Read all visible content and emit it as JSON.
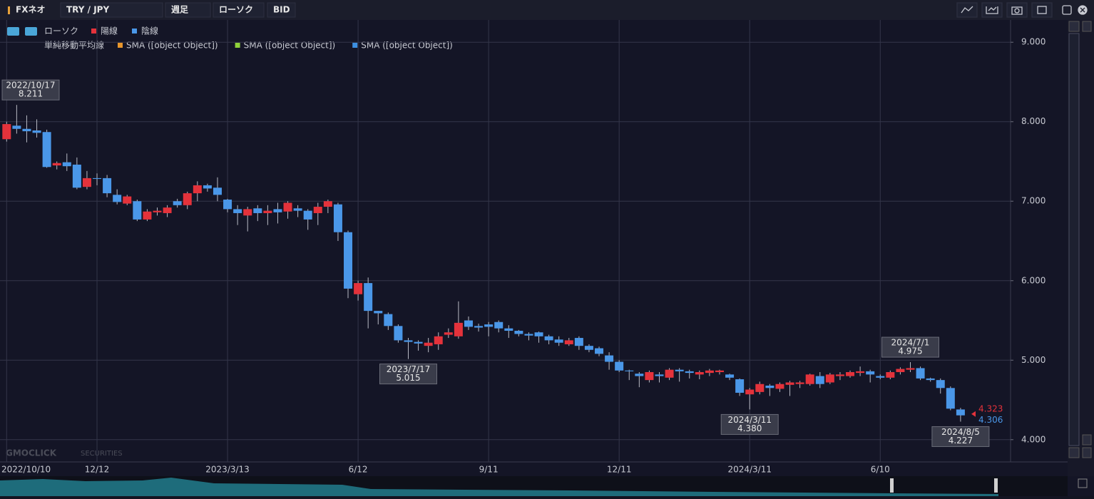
{
  "toolbar": {
    "app": "FXネオ",
    "pair": "TRY / JPY",
    "period": "週足",
    "chart_kind": "ローソク",
    "price_type": "BID"
  },
  "watermark": {
    "brand": "GMOCLICK",
    "sub": "SECURITIES"
  },
  "chart_data": {
    "type": "candlestick",
    "legend": {
      "title": "ローソク",
      "up": "陽線",
      "down": "陰線"
    },
    "sma_legend": {
      "title": "単純移動平均線",
      "series": [
        {
          "name": "SMA ([object Object])",
          "color": "#e8962c"
        },
        {
          "name": "SMA ([object Object])",
          "color": "#8fd13a"
        },
        {
          "name": "SMA ([object Object])",
          "color": "#3d8fe0"
        }
      ]
    },
    "up_color": "#e4323b",
    "down_color": "#4a97e8",
    "categories": [
      "2022/10/10",
      null,
      null,
      null,
      null,
      null,
      null,
      null,
      null,
      "12/12",
      null,
      null,
      null,
      null,
      null,
      null,
      null,
      null,
      null,
      null,
      null,
      null,
      "2023/3/13",
      null,
      null,
      null,
      null,
      null,
      null,
      null,
      null,
      null,
      null,
      null,
      null,
      "6/12",
      null,
      null,
      null,
      null,
      null,
      null,
      null,
      null,
      null,
      null,
      null,
      null,
      "9/11",
      null,
      null,
      null,
      null,
      null,
      null,
      null,
      null,
      null,
      null,
      null,
      null,
      "12/11",
      null,
      null,
      null,
      null,
      null,
      null,
      null,
      null,
      null,
      null,
      null,
      null,
      "2024/3/11",
      null,
      null,
      null,
      null,
      null,
      null,
      null,
      null,
      null,
      null,
      null,
      null,
      "6/10",
      null,
      null,
      null,
      null,
      null,
      null,
      null,
      null
    ],
    "open": [
      7.78,
      7.95,
      7.91,
      7.89,
      7.87,
      7.45,
      7.49,
      7.46,
      7.18,
      7.29,
      7.29,
      7.08,
      6.97,
      7.0,
      6.77,
      6.86,
      6.85,
      7.0,
      6.95,
      7.1,
      7.2,
      7.17,
      7.02,
      6.9,
      6.82,
      6.91,
      6.85,
      6.9,
      6.87,
      6.91,
      6.88,
      6.85,
      6.93,
      6.96,
      6.61,
      5.83,
      5.97,
      5.62,
      5.58,
      5.43,
      5.25,
      5.23,
      5.18,
      5.2,
      5.32,
      5.3,
      5.5,
      5.43,
      5.45,
      5.48,
      5.4,
      5.37,
      5.33,
      5.35,
      5.3,
      5.26,
      5.2,
      5.28,
      5.18,
      5.15,
      5.06,
      4.98,
      4.87,
      4.83,
      4.75,
      4.82,
      4.78,
      4.88,
      4.86,
      4.82,
      4.84,
      4.85,
      4.82,
      4.76,
      4.57,
      4.6,
      4.68,
      4.64,
      4.69,
      4.7,
      4.7,
      4.8,
      4.72,
      4.8,
      4.8,
      4.84,
      4.86,
      4.8,
      4.78,
      4.85,
      4.88,
      4.9,
      4.77,
      4.75,
      4.65,
      4.38
    ],
    "high": [
      8.0,
      8.211,
      8.08,
      8.03,
      7.9,
      7.5,
      7.6,
      7.55,
      7.38,
      7.35,
      7.33,
      7.15,
      7.08,
      7.02,
      6.9,
      6.92,
      6.95,
      7.03,
      7.12,
      7.25,
      7.22,
      7.3,
      7.03,
      6.95,
      6.93,
      6.95,
      6.95,
      6.98,
      7.0,
      6.95,
      6.9,
      6.98,
      7.02,
      6.98,
      6.63,
      6.0,
      6.04,
      5.62,
      5.6,
      5.45,
      5.28,
      5.25,
      5.28,
      5.35,
      5.4,
      5.74,
      5.55,
      5.46,
      5.48,
      5.5,
      5.44,
      5.38,
      5.35,
      5.36,
      5.32,
      5.3,
      5.28,
      5.3,
      5.2,
      5.17,
      5.1,
      5.0,
      4.88,
      4.85,
      4.87,
      4.85,
      4.9,
      4.9,
      4.88,
      4.87,
      4.89,
      4.88,
      4.83,
      4.77,
      4.65,
      4.73,
      4.7,
      4.72,
      4.74,
      4.74,
      4.83,
      4.85,
      4.84,
      4.85,
      4.87,
      4.92,
      4.88,
      4.82,
      4.87,
      4.91,
      4.975,
      4.92,
      4.78,
      4.77,
      4.67,
      4.4
    ],
    "low": [
      7.75,
      7.85,
      7.74,
      7.8,
      7.42,
      7.4,
      7.38,
      7.15,
      7.15,
      7.2,
      7.05,
      6.96,
      6.95,
      6.75,
      6.75,
      6.82,
      6.8,
      6.92,
      6.9,
      7.0,
      7.12,
      7.0,
      6.86,
      6.7,
      6.62,
      6.75,
      6.7,
      6.72,
      6.78,
      6.8,
      6.64,
      6.7,
      6.85,
      6.5,
      5.78,
      5.75,
      5.4,
      5.45,
      5.38,
      5.22,
      5.015,
      5.12,
      5.1,
      5.13,
      5.28,
      5.27,
      5.38,
      5.36,
      5.3,
      5.35,
      5.28,
      5.3,
      5.25,
      5.22,
      5.2,
      5.18,
      5.18,
      5.13,
      5.1,
      5.05,
      4.88,
      4.85,
      4.75,
      4.66,
      4.72,
      4.72,
      4.75,
      4.73,
      4.77,
      4.76,
      4.8,
      4.82,
      4.75,
      4.55,
      4.38,
      4.57,
      4.55,
      4.6,
      4.55,
      4.65,
      4.68,
      4.65,
      4.7,
      4.75,
      4.78,
      4.8,
      4.72,
      4.76,
      4.76,
      4.82,
      4.85,
      4.75,
      4.73,
      4.58,
      4.37,
      4.227
    ],
    "close": [
      7.97,
      7.91,
      7.88,
      7.86,
      7.43,
      7.48,
      7.44,
      7.17,
      7.29,
      7.28,
      7.1,
      6.99,
      7.06,
      6.77,
      6.87,
      6.88,
      6.92,
      6.95,
      7.1,
      7.2,
      7.16,
      7.08,
      6.9,
      6.85,
      6.9,
      6.85,
      6.88,
      6.86,
      6.98,
      6.88,
      6.77,
      6.93,
      7.0,
      6.61,
      5.9,
      5.97,
      5.62,
      5.59,
      5.43,
      5.25,
      5.23,
      5.21,
      5.22,
      5.3,
      5.35,
      5.47,
      5.42,
      5.41,
      5.42,
      5.4,
      5.37,
      5.33,
      5.31,
      5.3,
      5.25,
      5.22,
      5.25,
      5.18,
      5.13,
      5.08,
      4.98,
      4.87,
      4.86,
      4.8,
      4.85,
      4.8,
      4.88,
      4.86,
      4.84,
      4.85,
      4.87,
      4.87,
      4.78,
      4.59,
      4.63,
      4.7,
      4.65,
      4.7,
      4.72,
      4.72,
      4.82,
      4.7,
      4.82,
      4.82,
      4.85,
      4.86,
      4.82,
      4.78,
      4.85,
      4.89,
      4.9,
      4.77,
      4.75,
      4.65,
      4.39,
      4.306
    ],
    "ylim": [
      3.72,
      9.28
    ],
    "yticks": [
      {
        "value": 4,
        "label": "4.000"
      },
      {
        "value": 5,
        "label": "5.000"
      },
      {
        "value": 6,
        "label": "6.000"
      },
      {
        "value": 7,
        "label": "7.000"
      },
      {
        "value": 8,
        "label": "8.000"
      },
      {
        "value": 9,
        "label": "9.000"
      }
    ],
    "grid": true,
    "annotations": [
      {
        "date": "2022/10/17",
        "label": "8.211"
      },
      {
        "date": "2023/7/17",
        "label": "5.015"
      },
      {
        "date": "2024/3/11",
        "label": "4.380"
      },
      {
        "date": "2024/7/1",
        "label": "4.975"
      },
      {
        "date": "2024/8/5",
        "label": "4.227"
      }
    ],
    "price_tags": [
      {
        "label": "4.323",
        "color": "#e4323b"
      },
      {
        "label": "4.306",
        "color": "#4a97e8"
      }
    ]
  }
}
